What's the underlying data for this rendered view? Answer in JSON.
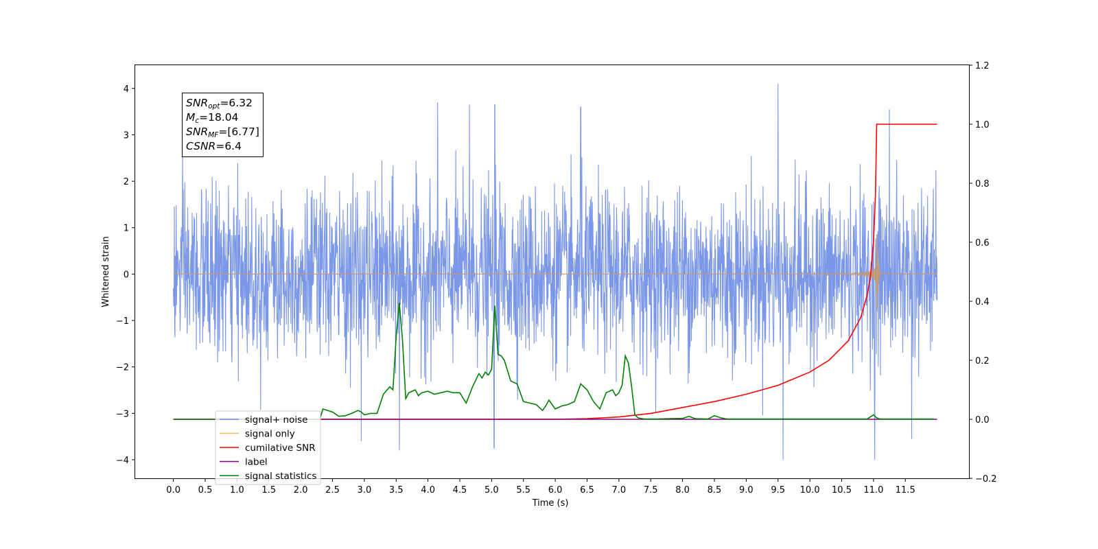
{
  "stats_box": {
    "lines": [
      {
        "symbol": "SNR",
        "sub": "opt",
        "value": "=6.32"
      },
      {
        "symbol": "M",
        "sub": "c",
        "value": "=18.04"
      },
      {
        "symbol": "SNR",
        "sub": "MF",
        "value": "=[6.77]"
      },
      {
        "symbol": "CSNR",
        "sub": "",
        "value": "=6.4"
      }
    ]
  },
  "chart_data": {
    "type": "line",
    "title": "",
    "xlabel": "Time (s)",
    "ylabel": "Whitened strain",
    "y2label": "",
    "xlim": [
      -0.6,
      12.5
    ],
    "ylim": [
      -4.4,
      4.5
    ],
    "y2lim": [
      -0.2,
      1.2
    ],
    "xticks": [
      "0.0",
      "0.5",
      "1.0",
      "1.5",
      "2.0",
      "2.5",
      "3.0",
      "3.5",
      "4.0",
      "4.5",
      "5.0",
      "5.5",
      "6.0",
      "6.5",
      "7.0",
      "7.5",
      "8.0",
      "8.5",
      "9.0",
      "9.5",
      "10.0",
      "10.5",
      "11.0",
      "11.5"
    ],
    "yticks": [
      "−4",
      "−3",
      "−2",
      "−1",
      "0",
      "1",
      "2",
      "3",
      "4"
    ],
    "y2ticks": [
      "−0.2",
      "0.0",
      "0.2",
      "0.4",
      "0.6",
      "0.8",
      "1.0",
      "1.2"
    ],
    "legend_position": "lower-left",
    "colors": {
      "signal_noise": "#6d8ce6",
      "signal_only": "#f5b85a",
      "signal_only_chirp": "#c49a72",
      "cumulative_snr": "#ff0000",
      "label": "#800080",
      "signal_statistics": "#008000"
    },
    "series": [
      {
        "name": "signal+ noise",
        "axis": "left",
        "kind": "noise",
        "x_range": [
          0,
          12.0
        ],
        "sigma": 0.9,
        "spikes": [
          [
            9.5,
            4.1
          ],
          [
            11.25,
            3.55
          ],
          [
            5.05,
            3.65
          ],
          [
            4.65,
            3.65
          ],
          [
            4.15,
            3.7
          ],
          [
            6.4,
            3.6
          ],
          [
            9.58,
            -4.0
          ],
          [
            11.02,
            -4.0
          ],
          [
            5.04,
            -3.75
          ],
          [
            3.55,
            -3.8
          ],
          [
            11.6,
            -3.55
          ],
          [
            2.95,
            -3.6
          ]
        ]
      },
      {
        "name": "signal only",
        "axis": "left",
        "kind": "chirp",
        "t_merge": 11.05,
        "peak_amplitude": 1.5
      },
      {
        "name": "cumilative SNR",
        "axis": "right",
        "x": [
          0,
          6.0,
          6.5,
          7.0,
          7.5,
          8.0,
          8.5,
          9.0,
          9.5,
          10.0,
          10.3,
          10.6,
          10.8,
          10.9,
          10.95,
          11.0,
          11.03,
          11.05,
          11.1,
          12.0
        ],
        "y": [
          0,
          0,
          0.002,
          0.008,
          0.02,
          0.04,
          0.06,
          0.085,
          0.115,
          0.16,
          0.2,
          0.265,
          0.345,
          0.42,
          0.48,
          0.6,
          0.76,
          1.0,
          1.0,
          1.0
        ]
      },
      {
        "name": "label",
        "axis": "right",
        "x": [
          0,
          12.0
        ],
        "y": [
          0,
          0
        ]
      },
      {
        "name": "signal statistics",
        "axis": "right",
        "x": [
          0,
          2.3,
          2.35,
          2.5,
          2.6,
          2.7,
          2.8,
          2.9,
          2.95,
          3.0,
          3.1,
          3.2,
          3.3,
          3.4,
          3.45,
          3.5,
          3.55,
          3.6,
          3.65,
          3.7,
          3.8,
          3.85,
          3.9,
          4.0,
          4.1,
          4.2,
          4.3,
          4.4,
          4.5,
          4.6,
          4.7,
          4.8,
          4.85,
          4.9,
          4.95,
          5.0,
          5.05,
          5.1,
          5.15,
          5.2,
          5.3,
          5.4,
          5.5,
          5.6,
          5.7,
          5.8,
          5.85,
          5.9,
          6.0,
          6.1,
          6.2,
          6.3,
          6.4,
          6.5,
          6.6,
          6.7,
          6.8,
          6.9,
          6.95,
          7.0,
          7.05,
          7.1,
          7.15,
          7.2,
          7.25,
          7.3,
          7.4,
          7.5,
          7.6,
          7.8,
          8.0,
          8.1,
          8.2,
          8.4,
          8.5,
          8.6,
          8.7,
          9.0,
          10.0,
          10.8,
          10.9,
          11.0,
          11.05,
          11.1,
          11.5,
          11.95
        ],
        "y": [
          0,
          0,
          0.035,
          0.025,
          0.01,
          0.012,
          0.02,
          0.03,
          0.025,
          0.015,
          0.02,
          0.02,
          0.085,
          0.11,
          0.1,
          0.28,
          0.395,
          0.27,
          0.07,
          0.09,
          0.1,
          0.08,
          0.09,
          0.095,
          0.085,
          0.09,
          0.095,
          0.09,
          0.09,
          0.055,
          0.11,
          0.155,
          0.14,
          0.16,
          0.15,
          0.17,
          0.385,
          0.22,
          0.215,
          0.2,
          0.13,
          0.12,
          0.06,
          0.055,
          0.05,
          0.03,
          0.045,
          0.065,
          0.035,
          0.045,
          0.05,
          0.06,
          0.12,
          0.1,
          0.06,
          0.035,
          0.09,
          0.1,
          0.08,
          0.09,
          0.115,
          0.215,
          0.19,
          0.11,
          0.015,
          0.005,
          0.001,
          0.001,
          0.001,
          0.002,
          0.003,
          0.01,
          0.002,
          0.001,
          0.012,
          0.005,
          0.001,
          0.001,
          0.001,
          0.001,
          0.001,
          0.015,
          0.005,
          0.001,
          0.001,
          0.001
        ]
      }
    ]
  }
}
